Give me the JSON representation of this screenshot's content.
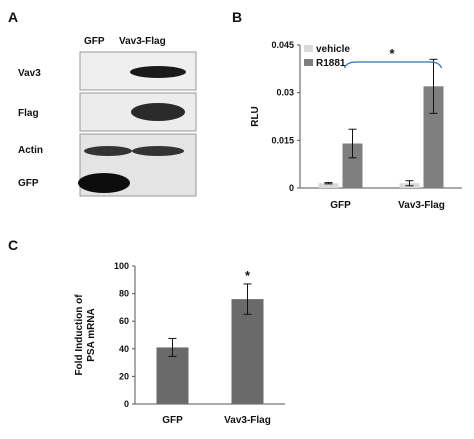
{
  "panel_a": {
    "letter": "A",
    "columns": [
      "GFP",
      "Vav3-Flag"
    ],
    "rows": [
      "Vav3",
      "Flag",
      "Actin",
      "GFP"
    ]
  },
  "chart_data": [
    {
      "panel": "B",
      "type": "bar",
      "categories": [
        "GFP",
        "Vav3-Flag"
      ],
      "series": [
        {
          "name": "vehicle",
          "values": [
            0.0015,
            0.0015
          ],
          "errors": [
            0.0002,
            0.0008
          ],
          "color": "#d9d9d9"
        },
        {
          "name": "R1881",
          "values": [
            0.014,
            0.032
          ],
          "errors": [
            0.0045,
            0.0085
          ],
          "color": "#7f7f7f"
        }
      ],
      "ylabel": "RLU",
      "ylim": [
        0,
        0.045
      ],
      "yticks": [
        "0",
        "0.015",
        "0.03",
        "0.045"
      ],
      "yvalues": [
        0,
        0.015,
        0.03,
        0.045
      ],
      "legend": "top-left",
      "annotation": "*"
    },
    {
      "panel": "C",
      "type": "bar",
      "categories": [
        "GFP",
        "Vav3-Flag"
      ],
      "series": [
        {
          "values": [
            41,
            76
          ],
          "errors": [
            6.5,
            11
          ],
          "color": "#6a6a6a"
        }
      ],
      "ylabel_lines": [
        "Fold Induction of",
        "PSA mRNA"
      ],
      "ylim": [
        0,
        100
      ],
      "yticks": [
        "0",
        "20",
        "40",
        "60",
        "80",
        "100"
      ],
      "yvalues": [
        0,
        20,
        40,
        60,
        80,
        100
      ],
      "annotation": "*"
    }
  ]
}
